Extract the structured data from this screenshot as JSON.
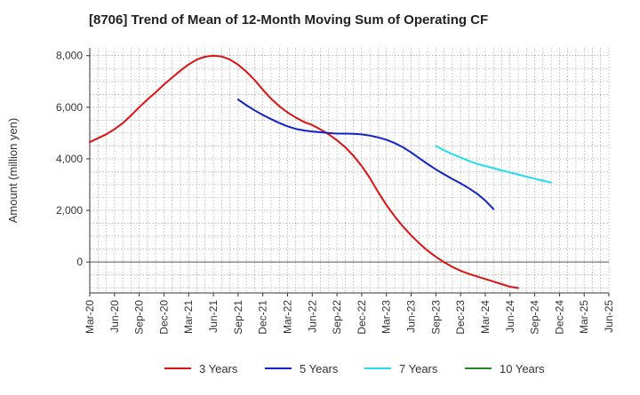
{
  "chart_data": {
    "type": "line",
    "title": "[8706]  Trend of Mean of 12-Month Moving Sum of Operating CF",
    "ylabel": "Amount (million yen)",
    "xlabel": "",
    "ylim": [
      -1200,
      8300
    ],
    "yticks": [
      0,
      2000,
      4000,
      6000,
      8000
    ],
    "ytick_labels": [
      "0",
      "2,000",
      "4,000",
      "6,000",
      "8,000"
    ],
    "x_tick_labels": [
      "Mar-20",
      "Jun-20",
      "Sep-20",
      "Dec-20",
      "Mar-21",
      "Jun-21",
      "Sep-21",
      "Dec-21",
      "Mar-22",
      "Jun-22",
      "Sep-22",
      "Dec-22",
      "Mar-23",
      "Jun-23",
      "Sep-23",
      "Dec-23",
      "Mar-24",
      "Jun-24",
      "Sep-24",
      "Dec-24",
      "Mar-25",
      "Jun-25"
    ],
    "x_months": [
      "Mar-20",
      "Apr-20",
      "May-20",
      "Jun-20",
      "Jul-20",
      "Aug-20",
      "Sep-20",
      "Oct-20",
      "Nov-20",
      "Dec-20",
      "Jan-21",
      "Feb-21",
      "Mar-21",
      "Apr-21",
      "May-21",
      "Jun-21",
      "Jul-21",
      "Aug-21",
      "Sep-21",
      "Oct-21",
      "Nov-21",
      "Dec-21",
      "Jan-22",
      "Feb-22",
      "Mar-22",
      "Apr-22",
      "May-22",
      "Jun-22",
      "Jul-22",
      "Aug-22",
      "Sep-22",
      "Oct-22",
      "Nov-22",
      "Dec-22",
      "Jan-23",
      "Feb-23",
      "Mar-23",
      "Apr-23",
      "May-23",
      "Jun-23",
      "Jul-23",
      "Aug-23",
      "Sep-23",
      "Oct-23",
      "Nov-23",
      "Dec-23",
      "Jan-24",
      "Feb-24",
      "Mar-24",
      "Apr-24",
      "May-24",
      "Jun-24",
      "Jul-24",
      "Aug-24",
      "Sep-24",
      "Oct-24",
      "Nov-24",
      "Dec-24",
      "Jan-25",
      "Feb-25",
      "Mar-25",
      "Apr-25",
      "May-25",
      "Jun-25"
    ],
    "grid": true,
    "legend_position": "bottom",
    "series": [
      {
        "name": "3 Years",
        "color": "#dd1111",
        "start_index": 0,
        "values": [
          4650,
          4800,
          4950,
          5150,
          5380,
          5680,
          6000,
          6300,
          6580,
          6880,
          7150,
          7420,
          7660,
          7850,
          7960,
          8000,
          7970,
          7850,
          7650,
          7380,
          7060,
          6680,
          6330,
          6040,
          5800,
          5600,
          5430,
          5310,
          5140,
          4950,
          4720,
          4450,
          4120,
          3720,
          3250,
          2710,
          2210,
          1770,
          1380,
          1030,
          720,
          440,
          200,
          -10,
          -190,
          -340,
          -460,
          -560,
          -660,
          -760,
          -860,
          -960,
          -1010
        ]
      },
      {
        "name": "5 Years",
        "color": "#1122cc",
        "start_index": 18,
        "values": [
          6300,
          6080,
          5880,
          5700,
          5540,
          5390,
          5260,
          5160,
          5100,
          5060,
          5030,
          5000,
          4980,
          4980,
          4970,
          4950,
          4900,
          4830,
          4740,
          4610,
          4450,
          4250,
          4020,
          3800,
          3590,
          3400,
          3220,
          3050,
          2860,
          2650,
          2380,
          2050
        ]
      },
      {
        "name": "7 Years",
        "color": "#22ddee",
        "start_index": 42,
        "values": [
          4500,
          4330,
          4180,
          4050,
          3920,
          3800,
          3720,
          3640,
          3550,
          3470,
          3390,
          3310,
          3230,
          3150,
          3080
        ]
      },
      {
        "name": "10 Years",
        "color": "#228822",
        "start_index": 0,
        "values": []
      }
    ]
  }
}
